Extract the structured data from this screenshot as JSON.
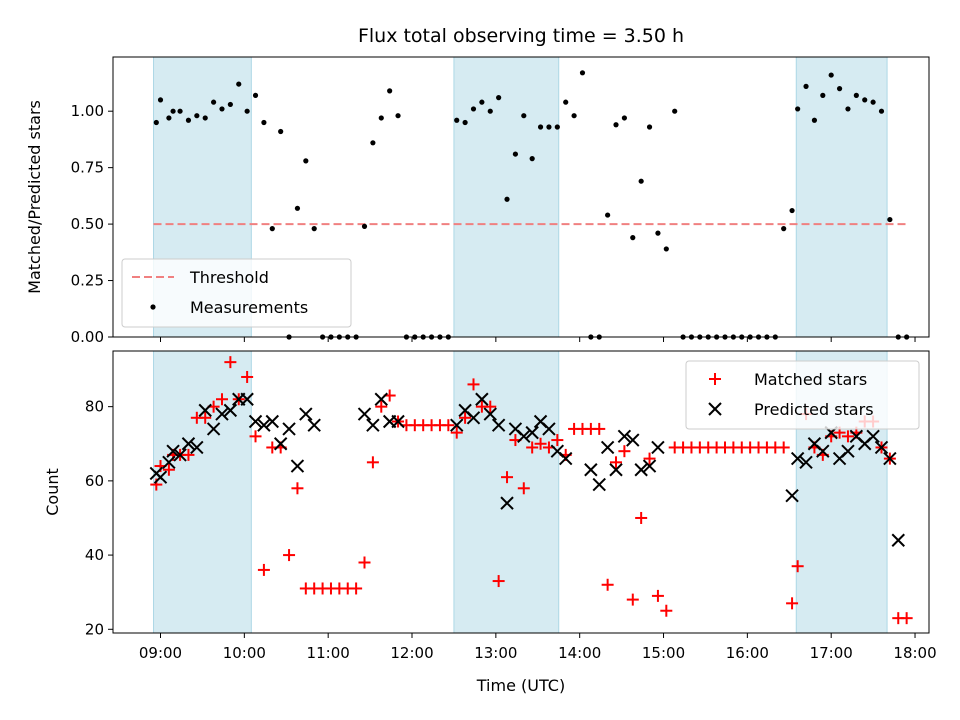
{
  "chart_data": [
    {
      "type": "scatter",
      "title": "Flux total observing time = 3.50 h",
      "xlabel": "",
      "ylabel": "Matched/Predicted stars",
      "ylim": [
        0,
        1.24
      ],
      "yticks": [
        "0.00",
        "0.25",
        "0.50",
        "0.75",
        "1.00"
      ],
      "threshold": 0.5,
      "legend": [
        "Threshold",
        "Measurements"
      ],
      "legend_position": "lower-left",
      "colors": {
        "threshold": "#f08080",
        "points": "#000000",
        "shade": "#add8e6"
      },
      "shaded_intervals": [
        [
          "08:55",
          "10:05"
        ],
        [
          "12:30",
          "13:45"
        ],
        [
          "16:35",
          "17:40"
        ]
      ],
      "series": [
        {
          "name": "Measurements",
          "x": [
            "08:57",
            "09:00",
            "09:06",
            "09:09",
            "09:14",
            "09:20",
            "09:26",
            "09:32",
            "09:38",
            "09:44",
            "09:50",
            "09:56",
            "10:02",
            "10:08",
            "10:14",
            "10:20",
            "10:26",
            "10:32",
            "10:38",
            "10:44",
            "10:50",
            "10:56",
            "11:02",
            "11:08",
            "11:14",
            "11:20",
            "11:26",
            "11:32",
            "11:38",
            "11:44",
            "11:50",
            "11:56",
            "12:02",
            "12:08",
            "12:14",
            "12:20",
            "12:26",
            "12:32",
            "12:38",
            "12:44",
            "12:50",
            "12:56",
            "13:02",
            "13:08",
            "13:14",
            "13:20",
            "13:26",
            "13:32",
            "13:38",
            "13:44",
            "13:50",
            "13:56",
            "14:02",
            "14:08",
            "14:14",
            "14:20",
            "14:26",
            "14:32",
            "14:38",
            "14:44",
            "14:50",
            "14:56",
            "15:02",
            "15:08",
            "15:14",
            "15:20",
            "15:26",
            "15:32",
            "15:38",
            "15:44",
            "15:50",
            "15:56",
            "16:02",
            "16:08",
            "16:14",
            "16:20",
            "16:26",
            "16:32",
            "16:36",
            "16:42",
            "16:48",
            "16:54",
            "17:00",
            "17:06",
            "17:12",
            "17:18",
            "17:24",
            "17:30",
            "17:36",
            "17:42",
            "17:48",
            "17:54"
          ],
          "values": [
            0.95,
            1.05,
            0.97,
            1.0,
            1.0,
            0.96,
            0.98,
            0.97,
            1.04,
            1.01,
            1.03,
            1.12,
            1.0,
            1.07,
            0.95,
            0.48,
            0.91,
            0.0,
            0.57,
            0.78,
            0.48,
            0.0,
            0.0,
            0.0,
            0.0,
            0.0,
            0.49,
            0.86,
            0.97,
            1.09,
            0.98,
            0.0,
            0.0,
            0.0,
            0.0,
            0.0,
            0.0,
            0.96,
            0.95,
            1.01,
            1.04,
            1.0,
            1.06,
            0.61,
            0.81,
            0.98,
            0.79,
            0.93,
            0.93,
            0.93,
            1.04,
            0.98,
            1.17,
            0.0,
            0.0,
            0.54,
            0.94,
            0.97,
            0.44,
            0.69,
            0.93,
            0.46,
            0.39,
            1.0,
            0.0,
            0.0,
            0.0,
            0.0,
            0.0,
            0.0,
            0.0,
            0.0,
            0.0,
            0.0,
            0.0,
            0.0,
            0.48,
            0.56,
            1.01,
            1.11,
            0.96,
            1.07,
            1.16,
            1.1,
            1.01,
            1.07,
            1.05,
            1.04,
            1.0,
            0.52,
            0.0,
            0.0
          ]
        }
      ]
    },
    {
      "type": "scatter",
      "title": "",
      "xlabel": "Time (UTC)",
      "ylabel": "Count",
      "ylim": [
        19,
        95
      ],
      "yticks": [
        "20",
        "40",
        "60",
        "80"
      ],
      "xticks": [
        "09:00",
        "10:00",
        "11:00",
        "12:00",
        "13:00",
        "14:00",
        "15:00",
        "16:00",
        "17:00",
        "18:00"
      ],
      "legend": [
        "Matched stars",
        "Predicted stars"
      ],
      "legend_position": "top-right",
      "colors": {
        "matched": "#ff0000",
        "predicted": "#000000",
        "shade": "#add8e6"
      },
      "shaded_intervals": [
        [
          "08:55",
          "10:05"
        ],
        [
          "12:30",
          "13:45"
        ],
        [
          "16:35",
          "17:40"
        ]
      ],
      "series": [
        {
          "name": "Matched stars",
          "x": [
            "08:57",
            "09:00",
            "09:06",
            "09:09",
            "09:14",
            "09:20",
            "09:26",
            "09:32",
            "09:38",
            "09:44",
            "09:50",
            "09:56",
            "10:02",
            "10:08",
            "10:14",
            "10:20",
            "10:26",
            "10:32",
            "10:38",
            "10:44",
            "10:50",
            "10:56",
            "11:02",
            "11:08",
            "11:14",
            "11:20",
            "11:26",
            "11:32",
            "11:38",
            "11:44",
            "11:50",
            "11:56",
            "12:02",
            "12:08",
            "12:14",
            "12:20",
            "12:26",
            "12:32",
            "12:38",
            "12:44",
            "12:50",
            "12:56",
            "13:02",
            "13:08",
            "13:14",
            "13:20",
            "13:26",
            "13:32",
            "13:38",
            "13:44",
            "13:50",
            "13:56",
            "14:02",
            "14:08",
            "14:14",
            "14:20",
            "14:26",
            "14:32",
            "14:38",
            "14:44",
            "14:50",
            "14:56",
            "15:02",
            "15:08",
            "15:14",
            "15:20",
            "15:26",
            "15:32",
            "15:38",
            "15:44",
            "15:50",
            "15:56",
            "16:02",
            "16:08",
            "16:14",
            "16:20",
            "16:26",
            "16:32",
            "16:36",
            "16:42",
            "16:48",
            "16:54",
            "17:00",
            "17:06",
            "17:12",
            "17:18",
            "17:24",
            "17:30",
            "17:36",
            "17:42",
            "17:48",
            "17:54"
          ],
          "values": [
            59,
            64,
            63,
            67,
            67,
            67,
            77,
            77,
            80,
            82,
            92,
            82,
            88,
            72,
            36,
            69,
            69,
            40,
            58,
            31,
            31,
            31,
            31,
            31,
            31,
            31,
            38,
            65,
            80,
            83,
            76,
            75,
            75,
            75,
            75,
            75,
            75,
            73,
            77,
            86,
            80,
            80,
            33,
            61,
            71,
            58,
            69,
            70,
            69,
            71,
            67,
            74,
            74,
            74,
            74,
            32,
            65,
            68,
            28,
            50,
            66,
            29,
            25,
            69,
            69,
            69,
            69,
            69,
            69,
            69,
            69,
            69,
            69,
            69,
            69,
            69,
            69,
            27,
            37,
            78,
            69,
            67,
            72,
            73,
            72,
            73,
            76,
            76,
            69,
            66,
            23,
            23
          ]
        },
        {
          "name": "Predicted stars",
          "x": [
            "08:57",
            "09:00",
            "09:06",
            "09:09",
            "09:14",
            "09:20",
            "09:26",
            "09:32",
            "09:38",
            "09:44",
            "09:50",
            "09:56",
            "10:02",
            "10:08",
            "10:14",
            "10:20",
            "10:26",
            "10:32",
            "10:38",
            "10:44",
            "10:50",
            "11:26",
            "11:32",
            "11:38",
            "11:44",
            "11:50",
            "12:32",
            "12:38",
            "12:44",
            "12:50",
            "12:56",
            "13:02",
            "13:08",
            "13:14",
            "13:20",
            "13:26",
            "13:32",
            "13:38",
            "13:44",
            "13:50",
            "14:08",
            "14:14",
            "14:20",
            "14:26",
            "14:32",
            "14:38",
            "14:44",
            "14:50",
            "14:56",
            "16:32",
            "16:36",
            "16:42",
            "16:48",
            "16:54",
            "17:00",
            "17:06",
            "17:12",
            "17:18",
            "17:24",
            "17:30",
            "17:36",
            "17:42",
            "17:48"
          ],
          "values": [
            62,
            61,
            65,
            68,
            67,
            70,
            69,
            79,
            74,
            78,
            79,
            82,
            82,
            76,
            75,
            76,
            70,
            74,
            64,
            78,
            75,
            78,
            75,
            82,
            76,
            76,
            75,
            79,
            77,
            82,
            78,
            75,
            54,
            74,
            72,
            73,
            76,
            74,
            68,
            66,
            63,
            59,
            69,
            63,
            72,
            71,
            63,
            64,
            69,
            56,
            66,
            65,
            70,
            68,
            73,
            66,
            68,
            72,
            70,
            72,
            69,
            66,
            44
          ]
        }
      ]
    }
  ]
}
